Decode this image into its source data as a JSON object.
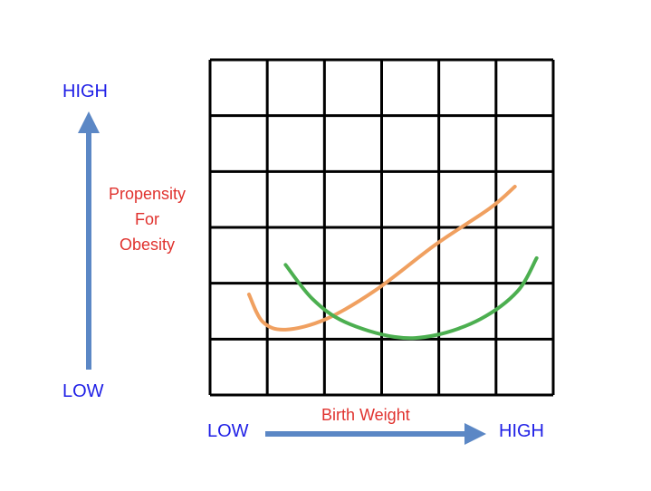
{
  "chart_data": {
    "type": "line",
    "title": "",
    "xlabel": "Birth Weight",
    "ylabel": "Propensity For Obesity",
    "ylabel_lines": [
      "Propensity",
      "For",
      "Obesity"
    ],
    "x_low_label": "LOW",
    "x_high_label": "HIGH",
    "y_low_label": "LOW",
    "y_high_label": "HIGH",
    "xlim": [
      0,
      6
    ],
    "ylim": [
      0,
      6
    ],
    "grid": true,
    "grid_cells": [
      6,
      6
    ],
    "series": [
      {
        "name": "orange-curve",
        "color": "#f0a060",
        "x": [
          0.68,
          0.92,
          1.32,
          2.03,
          2.9,
          3.94,
          4.89,
          5.33
        ],
        "y": [
          1.8,
          1.31,
          1.17,
          1.36,
          1.88,
          2.69,
          3.34,
          3.73
        ]
      },
      {
        "name": "green-curve",
        "color": "#4caf50",
        "x": [
          1.32,
          1.79,
          2.35,
          3.22,
          3.94,
          4.73,
          5.37,
          5.71
        ],
        "y": [
          2.33,
          1.72,
          1.31,
          1.04,
          1.07,
          1.36,
          1.85,
          2.45
        ]
      }
    ],
    "arrow_color": "#5b87c5"
  }
}
